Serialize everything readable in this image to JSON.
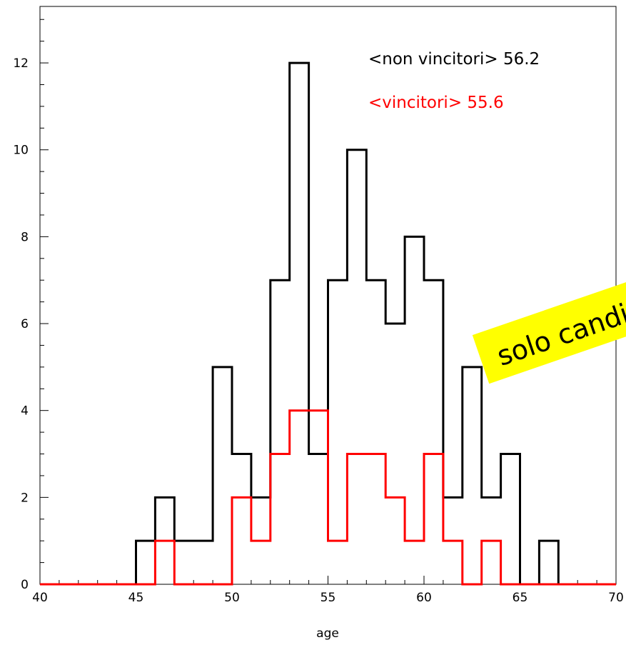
{
  "chart_data": {
    "type": "histogram",
    "xlabel": "age",
    "ylabel": "",
    "xlim": [
      40,
      70
    ],
    "ylim": [
      0,
      13.3
    ],
    "bin_width": 1,
    "bin_edges": [
      40,
      41,
      42,
      43,
      44,
      45,
      46,
      47,
      48,
      49,
      50,
      51,
      52,
      53,
      54,
      55,
      56,
      57,
      58,
      59,
      60,
      61,
      62,
      63,
      64,
      65,
      66,
      67,
      68,
      69,
      70
    ],
    "x_ticks": [
      40,
      45,
      50,
      55,
      60,
      65,
      70
    ],
    "y_ticks": [
      0,
      2,
      4,
      6,
      8,
      10,
      12
    ],
    "grid": false,
    "series": [
      {
        "color": "#000000",
        "values": [
          0,
          0,
          0,
          0,
          0,
          1,
          2,
          1,
          1,
          5,
          3,
          2,
          7,
          12,
          3,
          7,
          10,
          7,
          6,
          8,
          7,
          2,
          5,
          2,
          3,
          0,
          1,
          0,
          0,
          0
        ]
      },
      {
        "color": "#ff0000",
        "values": [
          0,
          0,
          0,
          0,
          0,
          0,
          1,
          0,
          0,
          0,
          2,
          1,
          3,
          4,
          4,
          1,
          3,
          3,
          2,
          1,
          3,
          1,
          0,
          1,
          0,
          0,
          0,
          0,
          0,
          0
        ]
      }
    ],
    "annotations": [
      {
        "text": "<non vincitori> 56.2",
        "color": "#000000"
      },
      {
        "text": "<vincitori> 55.6",
        "color": "#ff0000"
      }
    ],
    "sticky_note": {
      "text": "solo candi",
      "background": "#ffff00"
    }
  }
}
